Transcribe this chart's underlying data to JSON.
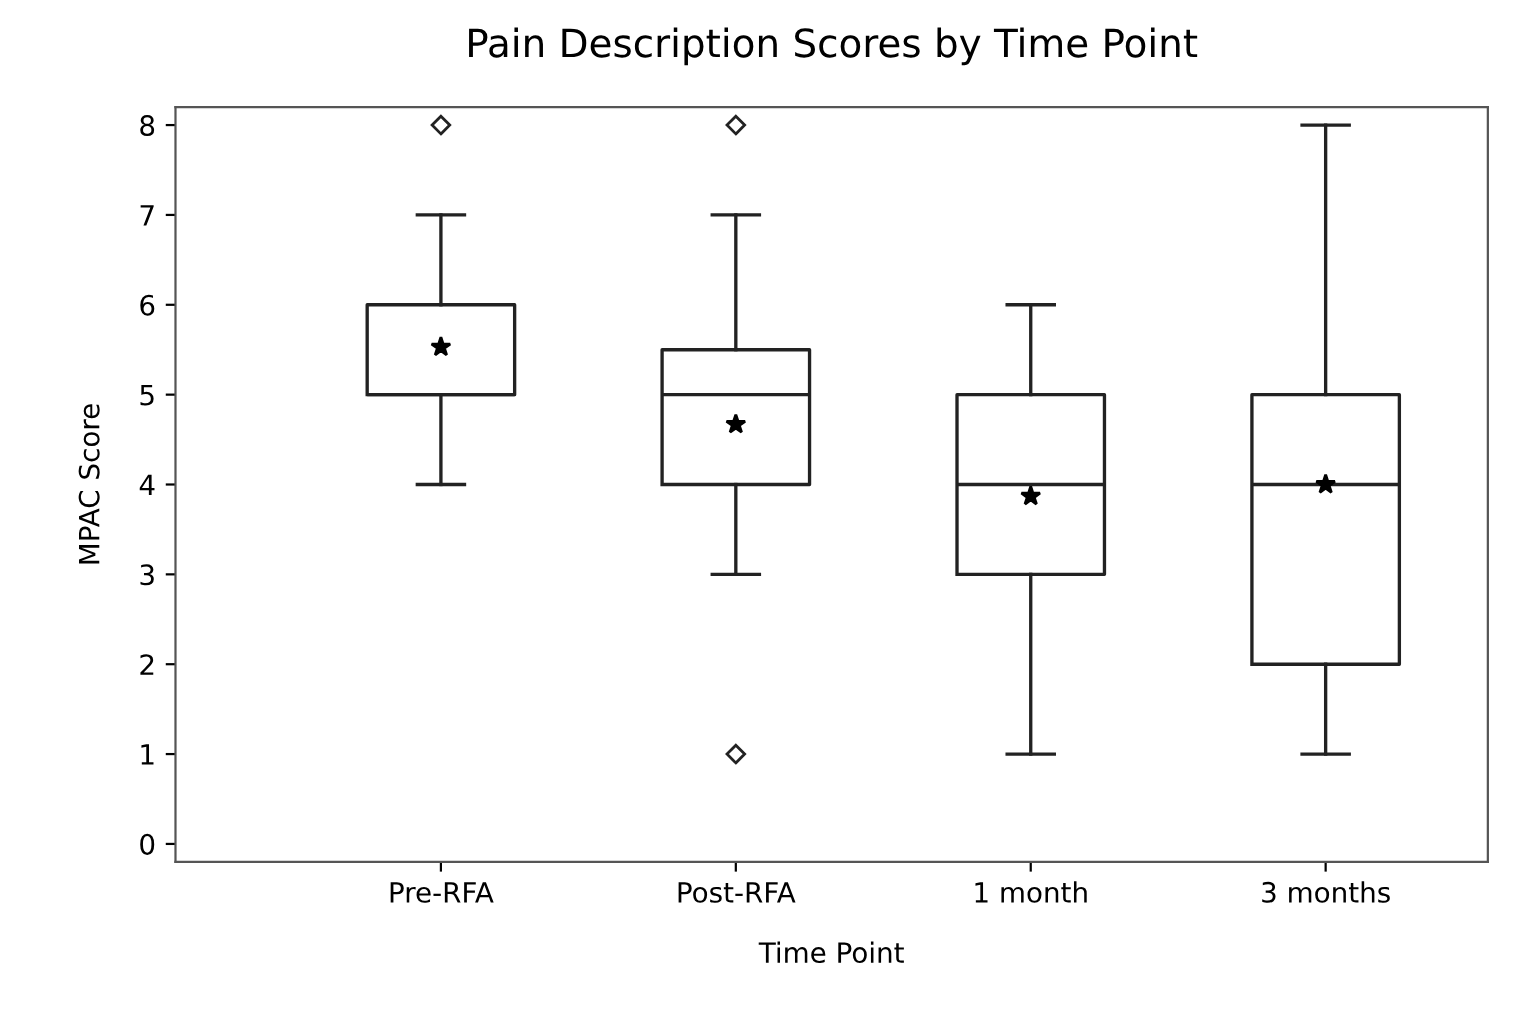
{
  "chart_data": {
    "type": "box",
    "title": "Pain Description Scores by Time Point",
    "xlabel": "Time Point",
    "ylabel": "MPAC Score",
    "categories": [
      "Pre-RFA",
      "Post-RFA",
      "1 month",
      "3 months"
    ],
    "boxes": [
      {
        "low": 4,
        "q1": 5,
        "median": 5,
        "q3": 6,
        "high": 7,
        "mean": 5.53,
        "outliers": [
          8
        ]
      },
      {
        "low": 3,
        "q1": 4,
        "median": 5,
        "q3": 5.5,
        "high": 7,
        "mean": 4.67,
        "outliers": [
          8,
          1
        ]
      },
      {
        "low": 1,
        "q1": 3,
        "median": 4,
        "q3": 5,
        "high": 6,
        "mean": 3.87
      },
      {
        "low": 1,
        "q1": 2,
        "median": 4,
        "q3": 5,
        "high": 8,
        "mean": 4.0
      }
    ],
    "ylim": [
      -0.2,
      8.2
    ],
    "yticks": [
      0,
      1,
      2,
      3,
      4,
      5,
      6,
      7,
      8
    ],
    "grid": false,
    "legend": false
  }
}
